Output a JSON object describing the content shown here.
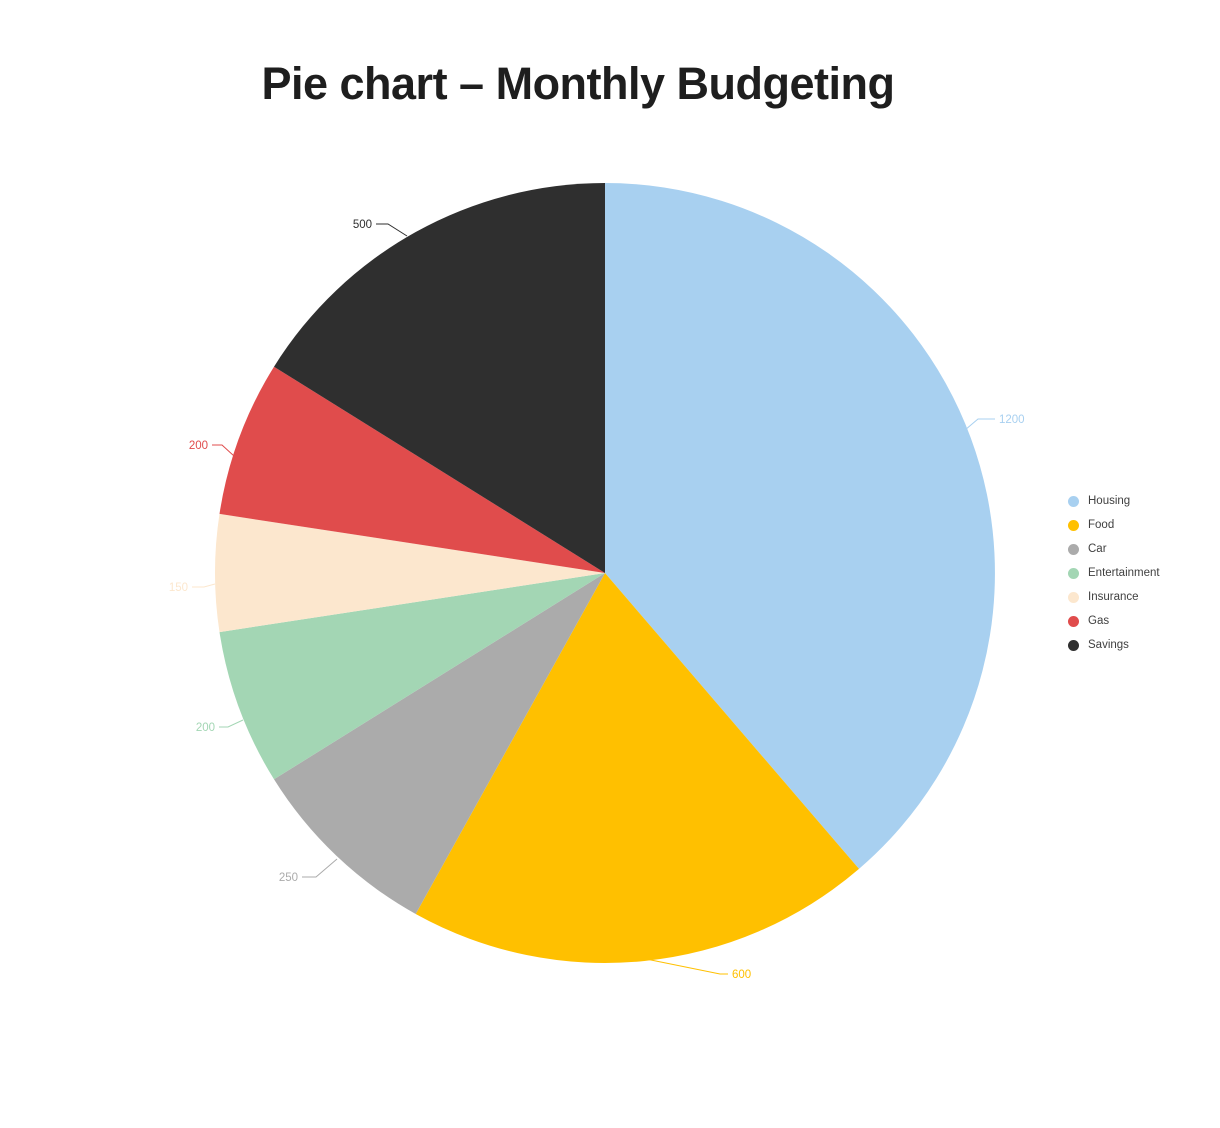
{
  "title": "Pie chart – Monthly Budgeting",
  "chart_data": {
    "type": "pie",
    "title": "Pie chart – Monthly Budgeting",
    "categories": [
      "Housing",
      "Food",
      "Car",
      "Entertainment",
      "Insurance",
      "Gas",
      "Savings"
    ],
    "values": [
      1200,
      600,
      250,
      200,
      150,
      200,
      500
    ],
    "colors": [
      "#A8D0F0",
      "#FFC000",
      "#ABABAB",
      "#A3D6B4",
      "#FCE7CE",
      "#E04C4C",
      "#2F2F2F"
    ],
    "data_label_values": [
      "1200",
      "600",
      "250",
      "200",
      "150",
      "200",
      "500"
    ],
    "legend_position": "right",
    "start_angle": "top",
    "direction": "clockwise",
    "background_color": "#ffffff",
    "title_color": "#1e1e1e"
  }
}
